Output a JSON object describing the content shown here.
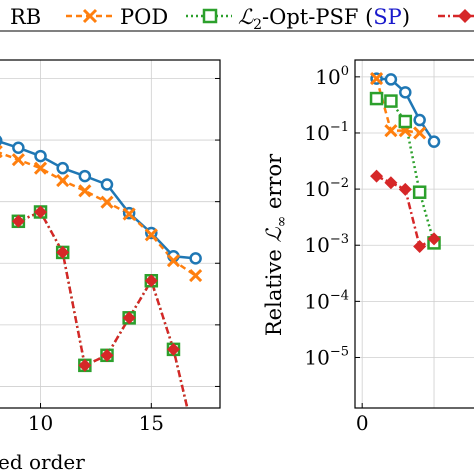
{
  "legend": {
    "entries": [
      {
        "label": "RB",
        "color": "#1f77b4",
        "marker": "circle",
        "dash": "solid"
      },
      {
        "label": "POD",
        "color": "#ff7f0e",
        "marker": "cross",
        "dash": "dashed"
      },
      {
        "label_prefix": "ℒ",
        "label_sub": "2",
        "label_main": "-Opt-PSF (",
        "label_sp": "SP",
        "label_end": ")",
        "color": "#2ca02c",
        "marker": "square",
        "dash": "dotted"
      },
      {
        "label": "",
        "color": "#d62728",
        "marker": "diamond",
        "dash": "dashdot"
      }
    ]
  },
  "chart_data": [
    {
      "type": "line",
      "xlabel": "ed order",
      "ylabel": "",
      "xlim": [
        7.9,
        18.1
      ],
      "ylim_log10": [
        -5.35,
        0.3
      ],
      "log_y": true,
      "xticks": [
        10,
        15
      ],
      "grid": true,
      "series": [
        {
          "key": "rb",
          "color": "#1f77b4",
          "x": [
            8,
            9,
            10,
            11,
            12,
            13,
            14,
            15,
            16,
            17
          ],
          "y": [
            0.098,
            0.075,
            0.055,
            0.035,
            0.026,
            0.019,
            0.0065,
            0.0031,
            0.0013,
            0.0012
          ]
        },
        {
          "key": "pod",
          "color": "#ff7f0e",
          "x": [
            8,
            9,
            10,
            11,
            12,
            13,
            14,
            15,
            16,
            17
          ],
          "y": [
            0.065,
            0.048,
            0.035,
            0.022,
            0.015,
            0.0098,
            0.0063,
            0.0029,
            0.0011,
            0.00063
          ]
        },
        {
          "key": "l2opt",
          "color": "#2ca02c",
          "x": [
            9,
            10,
            11,
            12,
            13,
            14,
            15,
            16,
            17
          ],
          "y": [
            0.0048,
            0.0068,
            0.0015,
            2.2e-05,
            3.2e-05,
            0.00013,
            0.00052,
            4e-05,
            1.2e-06
          ]
        },
        {
          "key": "fourth",
          "color": "#d62728",
          "x": [
            9,
            10,
            11,
            12,
            13,
            14,
            15,
            16,
            17
          ],
          "y": [
            0.0048,
            0.0068,
            0.0015,
            2.2e-05,
            3.2e-05,
            0.00013,
            0.00052,
            4e-05,
            1.2e-06
          ]
        }
      ]
    },
    {
      "type": "line",
      "xlabel": "",
      "ylabel_prefix": "Relative ",
      "ylabel_script": "ℒ",
      "ylabel_sub": "∞",
      "ylabel_suffix": " error",
      "xlim": [
        -0.5,
        8.2
      ],
      "xticks": [
        0
      ],
      "yticks_exp": [
        "0",
        "−1",
        "−2",
        "−3",
        "−4",
        "−5"
      ],
      "ytick_base": "10",
      "ylim_log10": [
        -5.9,
        0.3
      ],
      "log_y": true,
      "grid": true,
      "series": [
        {
          "key": "rb",
          "color": "#1f77b4",
          "x": [
            1,
            2,
            3,
            4,
            5
          ],
          "y": [
            0.93,
            0.9,
            0.53,
            0.17,
            0.07
          ]
        },
        {
          "key": "pod",
          "color": "#ff7f0e",
          "x": [
            1,
            2,
            3,
            4
          ],
          "y": [
            0.93,
            0.11,
            0.11,
            0.1
          ]
        },
        {
          "key": "l2opt",
          "color": "#2ca02c",
          "x": [
            1,
            2,
            3,
            4,
            5
          ],
          "y": [
            0.41,
            0.37,
            0.16,
            0.0088,
            0.0011
          ]
        },
        {
          "key": "fourth",
          "color": "#d62728",
          "x": [
            1,
            2,
            3,
            4,
            5
          ],
          "y": [
            0.017,
            0.013,
            0.0099,
            0.00095,
            0.0013
          ]
        }
      ]
    }
  ]
}
